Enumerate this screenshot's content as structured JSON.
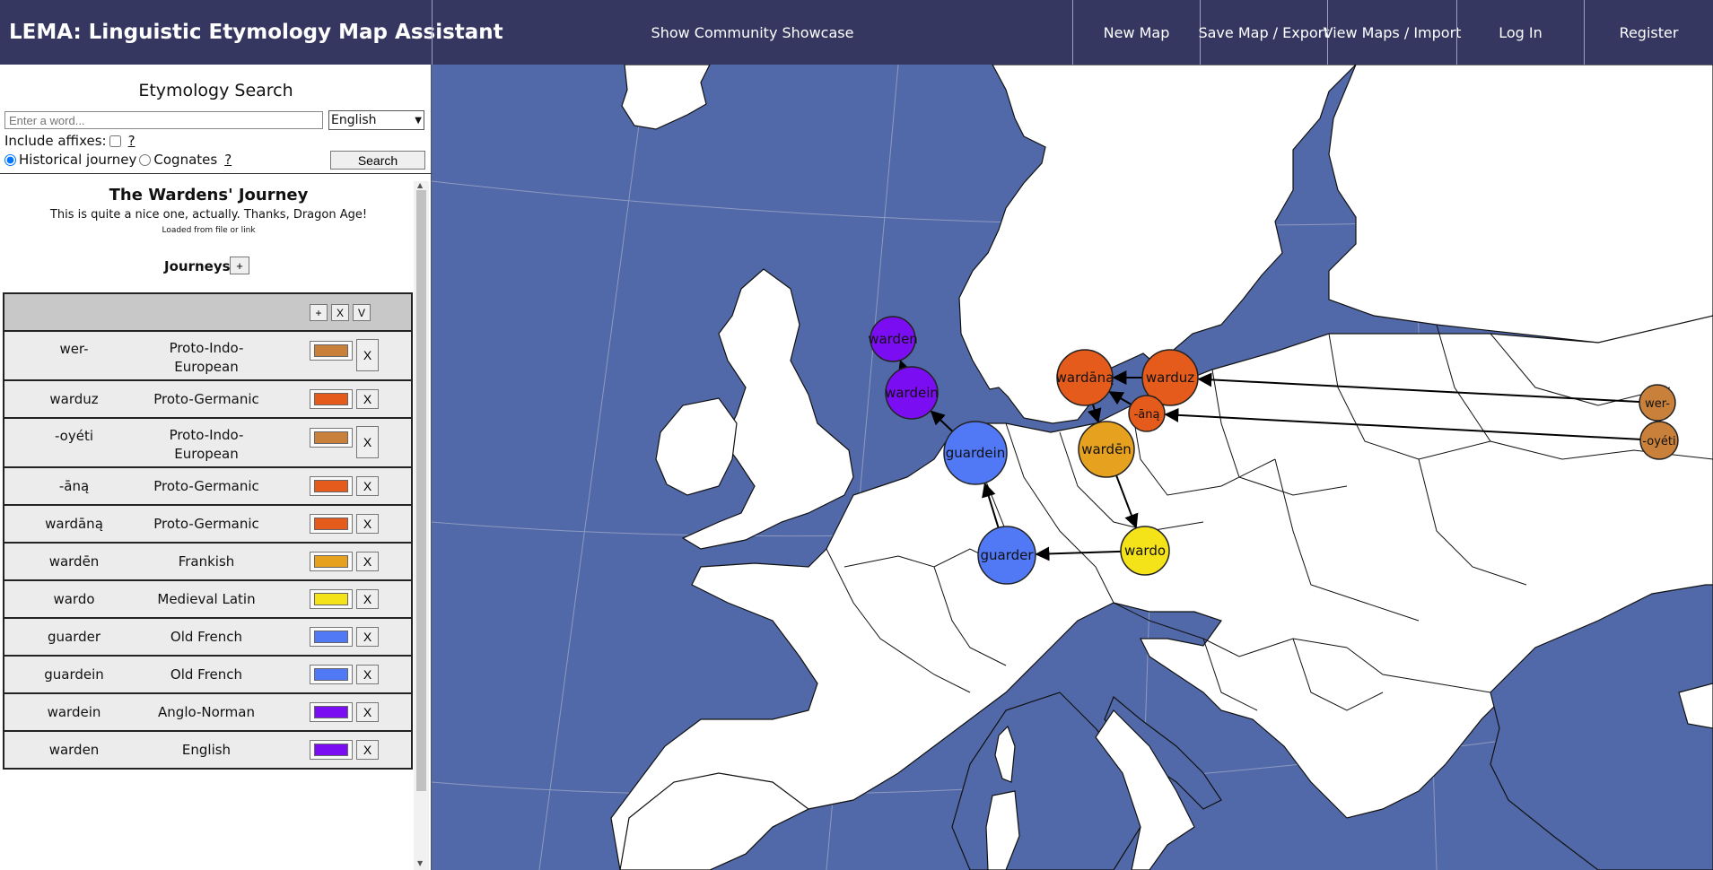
{
  "header": {
    "title": "LEMA: Linguistic Etymology Map Assistant",
    "nav": {
      "showcase": "Show Community Showcase",
      "new_map": "New Map",
      "save": "Save Map / Export",
      "view": "View Maps / Import",
      "login": "Log In",
      "register": "Register"
    }
  },
  "search": {
    "title": "Etymology Search",
    "placeholder": "Enter a word...",
    "language_selected": "English",
    "include_affixes_label": "Include affixes:",
    "help_symbol": "?",
    "mode_historical": "Historical journey",
    "mode_cognates": "Cognates",
    "search_button": "Search"
  },
  "map_info": {
    "title": "The Wardens' Journey",
    "description": "This is quite a nice one, actually. Thanks, Dragon Age!",
    "source": "Loaded from file or link",
    "journeys_label": "Journeys",
    "journeys_add": "+"
  },
  "table_header_buttons": [
    "+",
    "X",
    "V"
  ],
  "journey_rows": [
    {
      "word": "wer-",
      "language": "Proto-Indo-European",
      "color": "#c8803a"
    },
    {
      "word": "warduz",
      "language": "Proto-Germanic",
      "color": "#e55b1b"
    },
    {
      "word": "-oyéti",
      "language": "Proto-Indo-European",
      "color": "#c8803a"
    },
    {
      "word": "-āną",
      "language": "Proto-Germanic",
      "color": "#e55b1b"
    },
    {
      "word": "wardāną",
      "language": "Proto-Germanic",
      "color": "#e55b1b"
    },
    {
      "word": "wardēn",
      "language": "Frankish",
      "color": "#e6a11e"
    },
    {
      "word": "wardo",
      "language": "Medieval Latin",
      "color": "#f5e31a"
    },
    {
      "word": "guarder",
      "language": "Old French",
      "color": "#5178f5"
    },
    {
      "word": "guardein",
      "language": "Old French",
      "color": "#5178f5"
    },
    {
      "word": "wardein",
      "language": "Anglo-Norman",
      "color": "#7b0df2"
    },
    {
      "word": "warden",
      "language": "English",
      "color": "#7b0df2"
    }
  ],
  "delete_label": "X",
  "map": {
    "sea_color": "#5169a8",
    "land_color": "#ffffff",
    "nodes": [
      {
        "label": "wer-",
        "color": "#c8803a"
      },
      {
        "label": "-oyéti",
        "color": "#c8803a"
      },
      {
        "label": "warduz",
        "color": "#e55b1b"
      },
      {
        "label": "-āną",
        "color": "#e55b1b"
      },
      {
        "label": "wardāną",
        "color": "#e55b1b"
      },
      {
        "label": "wardēn",
        "color": "#e6a11e"
      },
      {
        "label": "wardo",
        "color": "#f5e31a"
      },
      {
        "label": "guarder",
        "color": "#5178f5"
      },
      {
        "label": "guardein",
        "color": "#5178f5"
      },
      {
        "label": "wardein",
        "color": "#7b0df2"
      },
      {
        "label": "warden",
        "color": "#7b0df2"
      }
    ]
  }
}
